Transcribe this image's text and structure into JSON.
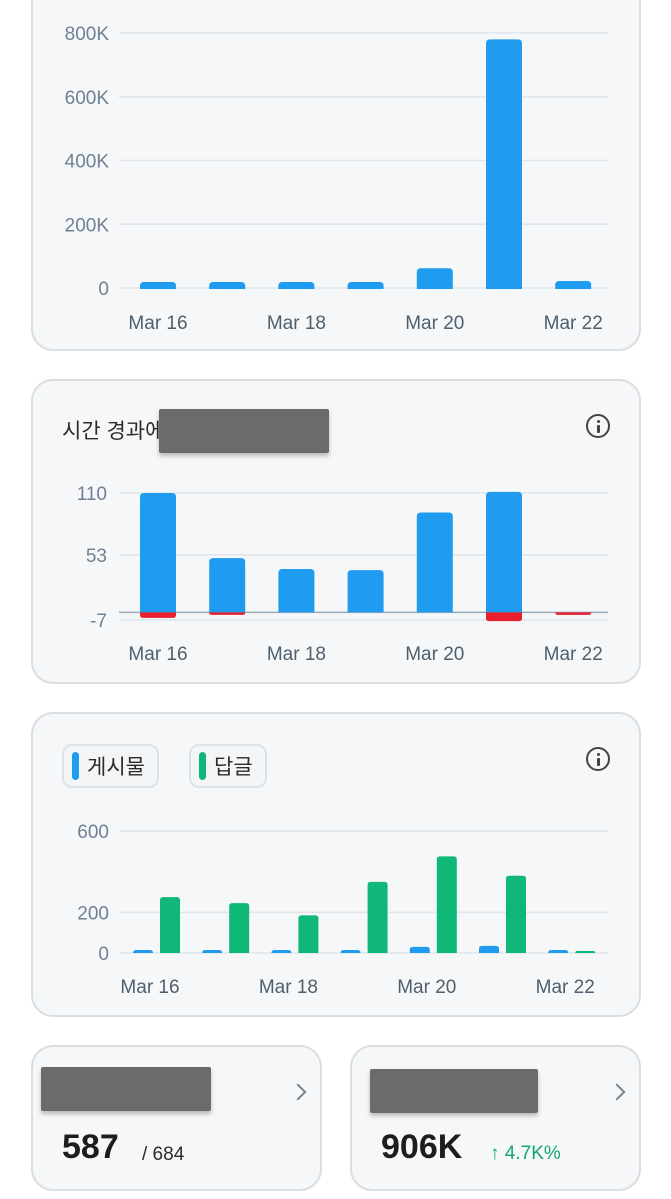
{
  "colors": {
    "blue": "#1f9bef",
    "green": "#0fb779",
    "red": "#e81f2e",
    "grid": "#dfe5eb",
    "tick": "#6f8194",
    "zeroline": "#9aaabb"
  },
  "chart_data": [
    {
      "type": "bar",
      "categories": [
        "Mar 16",
        "Mar 17",
        "Mar 18",
        "Mar 19",
        "Mar 20",
        "Mar 21",
        "Mar 22"
      ],
      "x_tick_labels": [
        "Mar 16",
        "",
        "Mar 18",
        "",
        "Mar 20",
        "",
        "Mar 22"
      ],
      "values": [
        18000,
        12000,
        9000,
        14000,
        62000,
        780000,
        22000
      ],
      "ylim": [
        0,
        800000
      ],
      "yticks": [
        0,
        200000,
        400000,
        600000,
        800000
      ],
      "ytick_labels": [
        "0",
        "200K",
        "400K",
        "600K",
        "800K"
      ],
      "grid": true
    },
    {
      "type": "bar",
      "title": "시간 경과에",
      "info_icon": "info-icon",
      "categories": [
        "Mar 16",
        "Mar 17",
        "Mar 18",
        "Mar 19",
        "Mar 20",
        "Mar 21",
        "Mar 22"
      ],
      "x_tick_labels": [
        "Mar 16",
        "",
        "Mar 18",
        "",
        "Mar 20",
        "",
        "Mar 22"
      ],
      "series": [
        {
          "values": [
            110,
            50,
            40,
            39,
            92,
            111,
            0
          ],
          "color_key": "blue"
        },
        {
          "values": [
            -5,
            -2,
            0,
            0,
            0,
            -8,
            -1
          ],
          "color_key": "red"
        }
      ],
      "ylim": [
        -7,
        110
      ],
      "yticks": [
        -7,
        53,
        110
      ],
      "ytick_labels": [
        "-7",
        "53",
        "110"
      ],
      "grid": true
    },
    {
      "type": "bar",
      "info_icon": "info-icon",
      "legend": [
        {
          "label": "게시물",
          "color_key": "blue"
        },
        {
          "label": "답글",
          "color_key": "green"
        }
      ],
      "categories": [
        "Mar 16",
        "Mar 17",
        "Mar 18",
        "Mar 19",
        "Mar 20",
        "Mar 21",
        "Mar 22"
      ],
      "x_tick_labels": [
        "Mar 16",
        "",
        "Mar 18",
        "",
        "Mar 20",
        "",
        "Mar 22"
      ],
      "series": [
        {
          "name": "게시물",
          "values": [
            12,
            10,
            11,
            15,
            30,
            35,
            2
          ],
          "color_key": "blue"
        },
        {
          "name": "답글",
          "values": [
            275,
            245,
            185,
            350,
            475,
            380,
            5
          ],
          "color_key": "green"
        }
      ],
      "ylim": [
        0,
        600
      ],
      "yticks": [
        0,
        200,
        600
      ],
      "ytick_labels": [
        "0",
        "200",
        "600"
      ],
      "grid": true
    }
  ],
  "stat_cards": [
    {
      "value": "587",
      "sub": "/ 684",
      "chevron_icon": "chevron-right-icon"
    },
    {
      "value": "906K",
      "change": "↑ 4.7K%",
      "chevron_icon": "chevron-right-icon"
    }
  ]
}
